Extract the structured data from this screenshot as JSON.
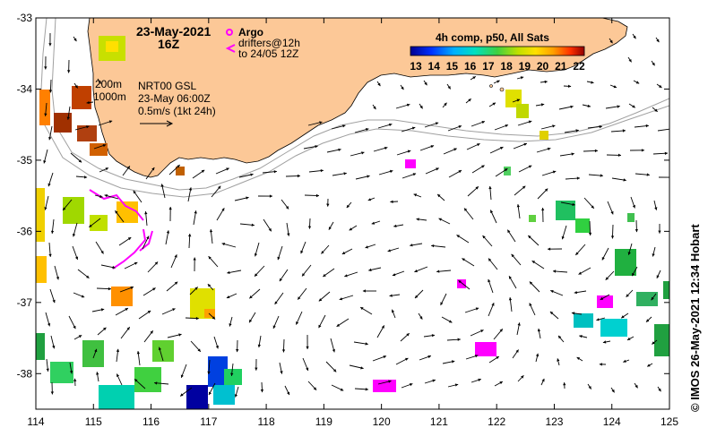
{
  "map": {
    "date_title": "23-May-2021",
    "time_title": "16Z",
    "legend_argo": "Argo",
    "legend_drifters_line1": "drifters@12h",
    "legend_drifters_line2": "to 24/05 12Z",
    "depth_label_200": "200m",
    "depth_label_1000": "1000m",
    "product_line1": "NRT00 GSL",
    "product_line2": "23-May 06:00Z",
    "product_line3": "0.5m/s (1kt 24h)",
    "colorbar_title": "4h comp, p50, All Sats",
    "colorbar_ticks": [
      "13",
      "14",
      "15",
      "16",
      "17",
      "18",
      "19",
      "20",
      "21",
      "22"
    ],
    "credit": "© IMOS 26-May-2021 12:34 Hobart",
    "lon_ticks": [
      "114",
      "115",
      "116",
      "117",
      "118",
      "119",
      "120",
      "121",
      "122",
      "123",
      "124",
      "125"
    ],
    "lat_ticks": [
      "-33",
      "-34",
      "-35",
      "-36",
      "-37",
      "-38"
    ],
    "lon_range": [
      114,
      125
    ],
    "lat_range": [
      -38.5,
      -33
    ],
    "colors": {
      "land": "#fcc897",
      "argo": "#ff00ff",
      "drifter": "#ff00ff",
      "isobath": "#a0a0a0"
    }
  }
}
